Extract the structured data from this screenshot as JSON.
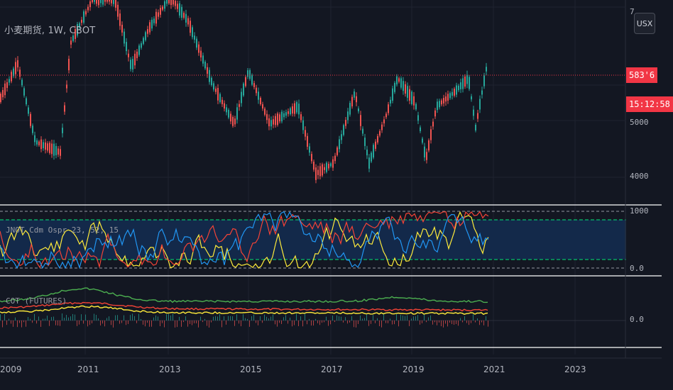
{
  "symbol": {
    "title": "小麦期货, 1W, CBOT"
  },
  "currency_button": "USX",
  "price_axis": {
    "upper": [
      "7",
      "5000",
      "4000"
    ],
    "osc": [
      "1000",
      "0.0"
    ],
    "cot": [
      "0.0"
    ]
  },
  "last_price": {
    "value": "583'6",
    "countdown": "15:12:58"
  },
  "indicators": {
    "oscillator_label": "JNOT Cdm Ospr 23, 52, 15",
    "cot_label": "COT (FUTURES)"
  },
  "time_axis": [
    "2009",
    "2011",
    "2013",
    "2015",
    "2017",
    "2019",
    "2021",
    "2023"
  ],
  "colors": {
    "background": "#131722",
    "up_candle": "#26a69a",
    "down_candle": "#ef5350",
    "price_line": "#f23645",
    "green_line": "#4caf50",
    "yellow_line": "#ffeb3b",
    "blue_line": "#2196f3",
    "red_line": "#f44336",
    "band_fill": "#13294a",
    "band_lines": "#00e676"
  }
}
